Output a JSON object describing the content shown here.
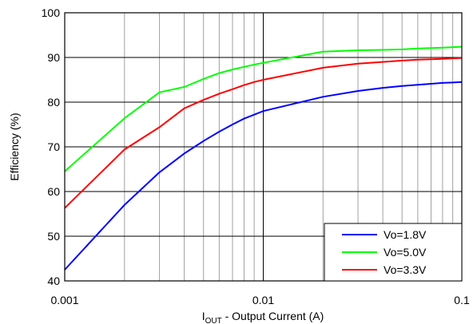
{
  "chart_data": {
    "type": "line",
    "title": "",
    "xlabel_main": "I",
    "xlabel_sub": "OUT",
    "xlabel_rest": " - Output Current (A)",
    "ylabel": "Efficiency (%)",
    "x_scale": "log",
    "xlim": [
      0.001,
      0.1
    ],
    "ylim": [
      40,
      100
    ],
    "x_ticks": [
      0.001,
      0.01,
      0.1
    ],
    "x_tick_labels": [
      "0.001",
      "0.01",
      "0.1"
    ],
    "y_ticks": [
      40,
      50,
      60,
      70,
      80,
      90,
      100
    ],
    "y_tick_labels": [
      "40",
      "50",
      "60",
      "70",
      "80",
      "90",
      "100"
    ],
    "grid": true,
    "legend_position": "bottom-right",
    "series": [
      {
        "name": "Vo=1.8V",
        "color": "#0000ff",
        "x": [
          0.001,
          0.002,
          0.003,
          0.004,
          0.005,
          0.006,
          0.007,
          0.008,
          0.009,
          0.01,
          0.02,
          0.03,
          0.04,
          0.05,
          0.06,
          0.07,
          0.08,
          0.09,
          0.1
        ],
        "y": [
          42.5,
          57.0,
          64.3,
          68.5,
          71.3,
          73.4,
          75.0,
          76.3,
          77.2,
          78.0,
          81.2,
          82.5,
          83.2,
          83.6,
          83.9,
          84.1,
          84.3,
          84.4,
          84.5
        ]
      },
      {
        "name": "Vo=5.0V",
        "color": "#00ff00",
        "x": [
          0.001,
          0.002,
          0.003,
          0.004,
          0.005,
          0.006,
          0.007,
          0.008,
          0.009,
          0.01,
          0.02,
          0.03,
          0.04,
          0.05,
          0.06,
          0.07,
          0.08,
          0.09,
          0.1
        ],
        "y": [
          64.5,
          76.4,
          82.2,
          83.4,
          85.2,
          86.5,
          87.3,
          87.9,
          88.4,
          88.8,
          91.3,
          91.6,
          91.7,
          91.8,
          92.0,
          92.1,
          92.2,
          92.3,
          92.4
        ]
      },
      {
        "name": "Vo=3.3V",
        "color": "#ff0000",
        "x": [
          0.001,
          0.002,
          0.003,
          0.004,
          0.005,
          0.006,
          0.007,
          0.008,
          0.009,
          0.01,
          0.02,
          0.03,
          0.04,
          0.05,
          0.06,
          0.07,
          0.08,
          0.09,
          0.1
        ],
        "y": [
          56.3,
          69.4,
          74.4,
          78.6,
          80.5,
          81.9,
          82.9,
          83.8,
          84.5,
          85.0,
          87.7,
          88.6,
          89.0,
          89.3,
          89.5,
          89.6,
          89.7,
          89.8,
          89.9
        ]
      }
    ]
  }
}
